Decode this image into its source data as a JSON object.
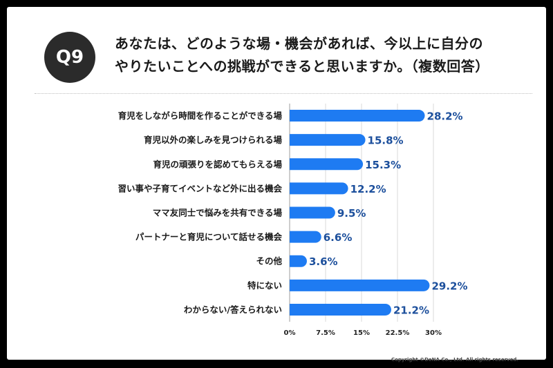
{
  "question": {
    "badge": "Q9",
    "title_line1": "あなたは、どのような場・機会があれば、今以上に自分の",
    "title_line2": "やりたいことへの挑戦ができると思いますか。（複数回答）"
  },
  "copyright": "Copyright ©DeNA Co., Ltd. All rights reserved.",
  "colors": {
    "bar": "#1e7bf2",
    "label": "#1c4f9c",
    "grid": "#d9d9d9"
  },
  "chart_data": {
    "type": "bar",
    "orientation": "horizontal",
    "categories": [
      "育児をしながら時間を作ることができる場",
      "育児以外の楽しみを見つけられる場",
      "育児の頑張りを認めてもらえる場",
      "習い事や子育てイベントなど外に出る機会",
      "ママ友同士で悩みを共有できる場",
      "パートナーと育児について話せる機会",
      "その他",
      "特にない",
      "わからない/答えられない"
    ],
    "values": [
      28.2,
      15.8,
      15.3,
      12.2,
      9.5,
      6.6,
      3.6,
      29.2,
      21.2
    ],
    "value_labels": [
      "28.2%",
      "15.8%",
      "15.3%",
      "12.2%",
      "9.5%",
      "6.6%",
      "3.6%",
      "29.2%",
      "21.2%"
    ],
    "xlim": [
      0,
      30
    ],
    "xticks": [
      0,
      7.5,
      15,
      22.5,
      30
    ],
    "xtick_labels": [
      "0%",
      "7.5%",
      "15%",
      "22.5%",
      "30%"
    ],
    "grid": true
  }
}
